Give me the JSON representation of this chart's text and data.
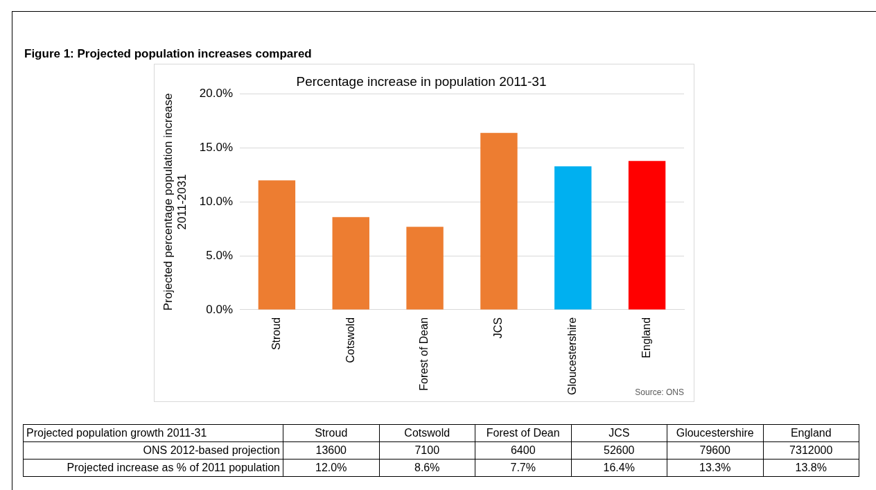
{
  "chart_data": {
    "type": "bar",
    "title": "Figure 1: Projected population increases compared",
    "subtitle": "Percentage increase in population 2011-31",
    "ylabel": "Projected percentage population increase\n2011-2031",
    "categories": [
      "Stroud",
      "Cotswold",
      "Forest of Dean",
      "JCS",
      "Gloucestershire",
      "England"
    ],
    "values": [
      12.0,
      8.6,
      7.7,
      16.4,
      13.3,
      13.8
    ],
    "colors": [
      "#ed7d31",
      "#ed7d31",
      "#ed7d31",
      "#ed7d31",
      "#00b0f0",
      "#ff0000"
    ],
    "ylim": [
      0,
      20
    ],
    "yticks": [
      {
        "value": 0,
        "label": "0.0%"
      },
      {
        "value": 5,
        "label": "5.0%"
      },
      {
        "value": 10,
        "label": "10.0%"
      },
      {
        "value": 15,
        "label": "15.0%"
      },
      {
        "value": 20,
        "label": "20.0%"
      }
    ],
    "grid": "y",
    "legend": false,
    "annotations": [
      "Source: ONS",
      "Projected population growth 2011-31",
      "ONS 2012-based projection",
      "13600",
      "7100",
      "6400",
      "52600",
      "79600",
      "7312000",
      "Projected increase as % of 2011 population",
      "12.0%",
      "8.6%",
      "7.7%",
      "16.4%",
      "13.3%",
      "13.8%"
    ]
  }
}
